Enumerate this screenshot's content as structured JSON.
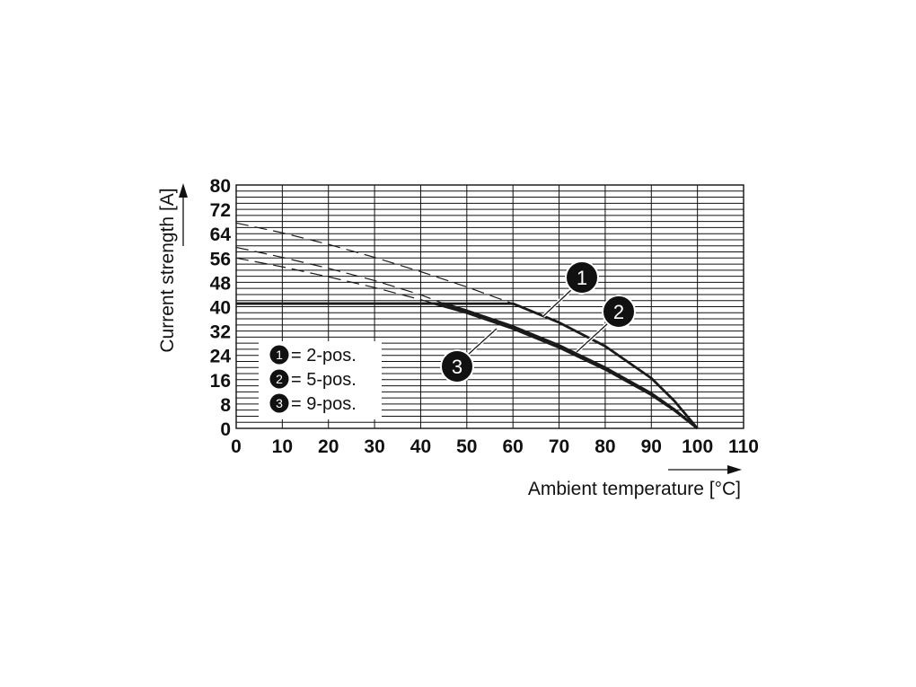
{
  "chart_data": {
    "type": "line",
    "xlabel": "Ambient temperature [°C]",
    "ylabel": "Current strength [A]",
    "xlim": [
      0,
      110
    ],
    "ylim": [
      0,
      80
    ],
    "x_ticks": [
      0,
      10,
      20,
      30,
      40,
      50,
      60,
      70,
      80,
      90,
      100,
      110
    ],
    "y_ticks": [
      0,
      8,
      16,
      24,
      32,
      40,
      48,
      56,
      64,
      72,
      80
    ],
    "grid": true,
    "legend": {
      "placement": "lower-left",
      "entries": [
        {
          "marker": "1",
          "label": "= 2-pos."
        },
        {
          "marker": "2",
          "label": "= 5-pos."
        },
        {
          "marker": "3",
          "label": "= 9-pos."
        }
      ]
    },
    "series": [
      {
        "marker": "1",
        "solid": {
          "x": [
            0,
            60,
            70,
            80,
            90,
            95,
            100
          ],
          "y": [
            41,
            41,
            34.8,
            27.0,
            16.5,
            9.0,
            0
          ]
        },
        "dashed": {
          "x": [
            0,
            10,
            20,
            30,
            40,
            50,
            60
          ],
          "y": [
            67.5,
            64.3,
            60.5,
            56.2,
            51.5,
            46.5,
            41
          ]
        }
      },
      {
        "marker": "2",
        "solid": {
          "x": [
            0,
            45,
            50,
            60,
            70,
            80,
            90,
            95,
            100
          ],
          "y": [
            41,
            41,
            38.7,
            33.5,
            27.3,
            20.0,
            11.5,
            6.2,
            0
          ]
        },
        "dashed": {
          "x": [
            0,
            10,
            20,
            30,
            40,
            45
          ],
          "y": [
            59.5,
            56.2,
            52.6,
            48.6,
            43.9,
            41
          ]
        }
      },
      {
        "marker": "3",
        "solid": {
          "x": [
            0,
            43,
            50,
            60,
            70,
            80,
            90,
            95,
            100
          ],
          "y": [
            41,
            41,
            38.0,
            32.8,
            26.6,
            19.4,
            11.0,
            5.9,
            0
          ]
        },
        "dashed": {
          "x": [
            0,
            10,
            20,
            30,
            40,
            43
          ],
          "y": [
            56.0,
            53.1,
            49.8,
            46.3,
            42.3,
            41
          ]
        }
      }
    ],
    "colors": {
      "line": "#1a1a1a",
      "grid": "#111111",
      "badge": "#111111"
    }
  }
}
